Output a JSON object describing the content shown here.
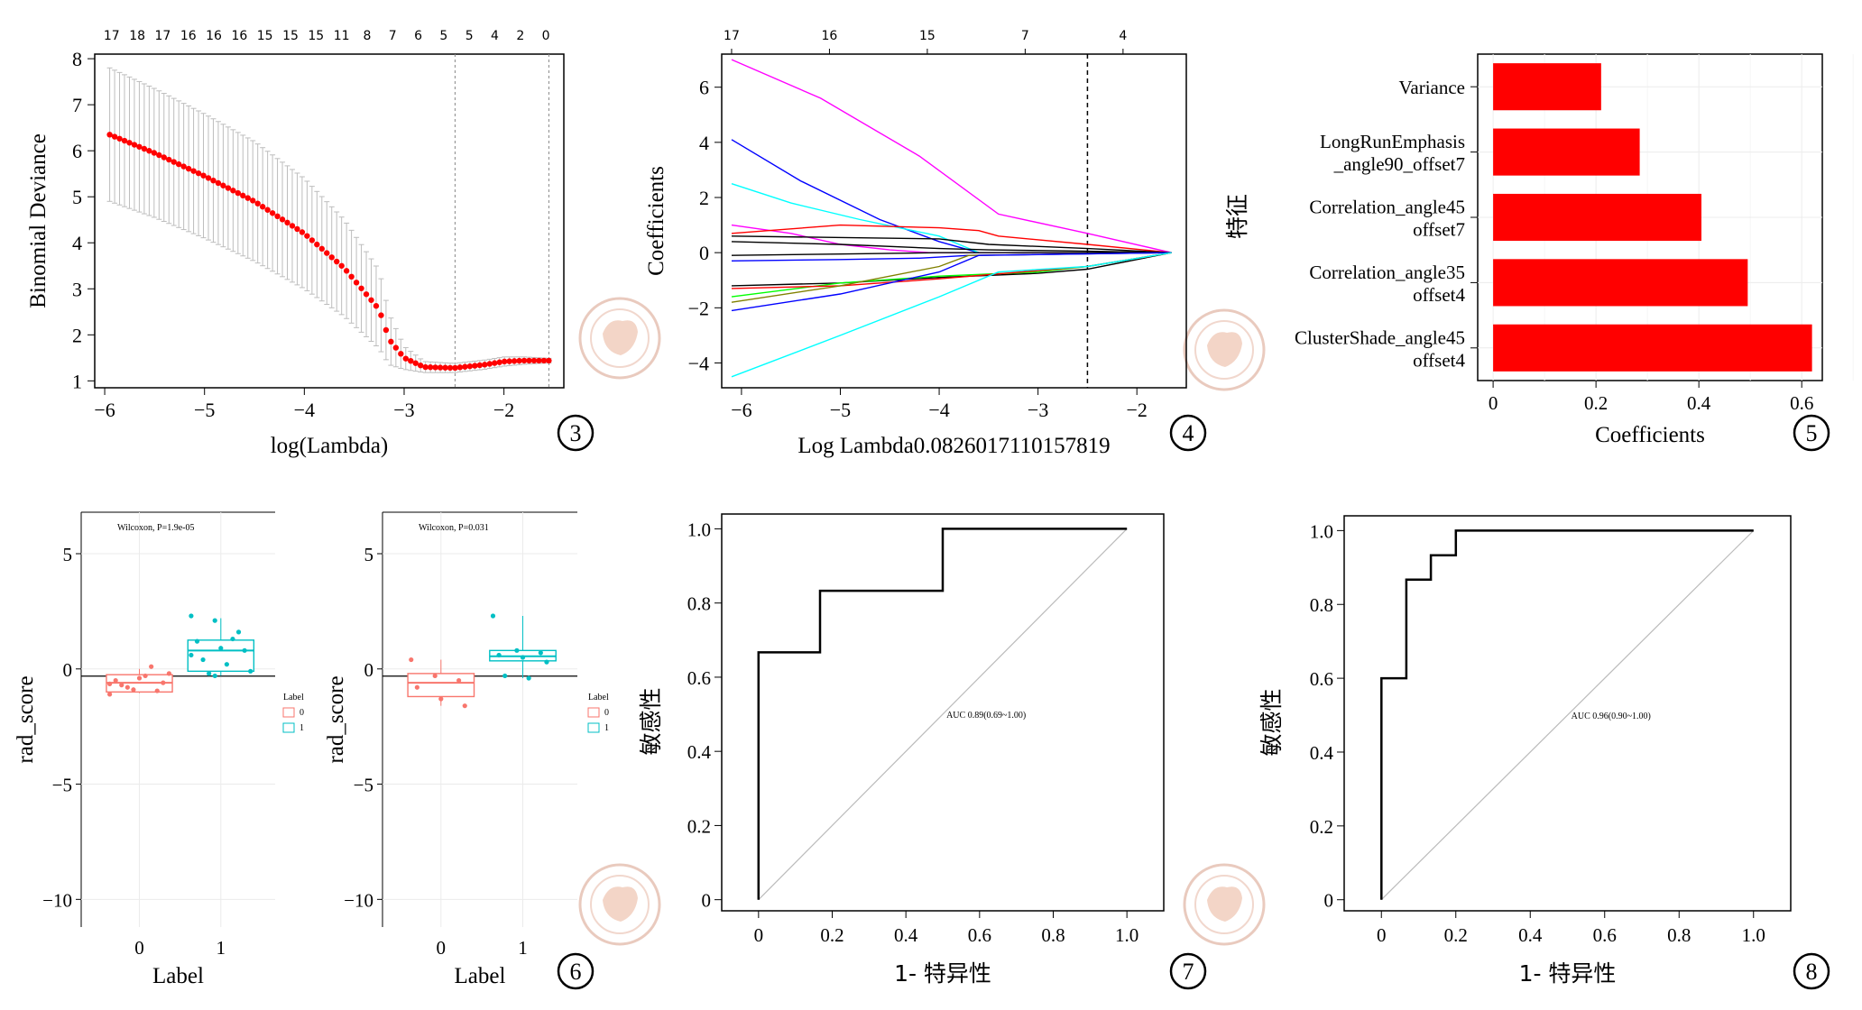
{
  "colors": {
    "red": "#ff0000",
    "black": "#000000",
    "grey": "#bdbdbd",
    "box0": "#f8766d",
    "box1": "#00bfc4",
    "seal": "#e8a080"
  },
  "panel_marks": [
    "3",
    "4",
    "5",
    "6",
    "7",
    "8"
  ],
  "chart_data": [
    {
      "type": "line",
      "id": "cv_deviance",
      "xlabel": "log(Lambda)",
      "ylabel": "Binomial Deviance",
      "xlim": [
        -6.1,
        -1.4
      ],
      "ylim": [
        0.85,
        8.1
      ],
      "xticks": [
        -6,
        -5,
        -4,
        -3,
        -2
      ],
      "yticks": [
        1,
        2,
        3,
        4,
        5,
        6,
        7,
        8
      ],
      "top_axis_labels": [
        "17",
        "18",
        "17",
        "16",
        "16",
        "16",
        "15",
        "15",
        "15",
        "11",
        "8",
        "7",
        "6",
        "5",
        "5",
        "4",
        "2",
        "0"
      ],
      "vlines": [
        -2.49,
        -1.55
      ],
      "series": [
        {
          "x": [
            -5.95,
            -5.5,
            -5.0,
            -4.5,
            -4.0,
            -3.6,
            -3.25,
            -3.15,
            -3.0,
            -2.8,
            -2.5,
            -2.2,
            -2.0,
            -1.8,
            -1.55
          ],
          "y": [
            6.35,
            5.95,
            5.45,
            4.9,
            4.2,
            3.45,
            2.55,
            1.9,
            1.5,
            1.3,
            1.28,
            1.35,
            1.42,
            1.44,
            1.44
          ],
          "err": [
            1.45,
            1.4,
            1.35,
            1.3,
            1.2,
            1.05,
            0.85,
            0.55,
            0.25,
            0.12,
            0.1,
            0.1,
            0.1,
            0.08,
            0.05
          ]
        }
      ]
    },
    {
      "type": "line",
      "id": "coef_path",
      "xlabel": "Log Lambda0.0826017110157819",
      "ylabel": "Coefficients",
      "xlim": [
        -6.2,
        -1.5
      ],
      "ylim": [
        -4.9,
        7.2
      ],
      "xticks": [
        -6,
        -5,
        -4,
        -3,
        -2
      ],
      "yticks": [
        -4,
        -2,
        0,
        2,
        4,
        6
      ],
      "top_axis_labels": [
        {
          "x": -6.2,
          "label": "17"
        },
        {
          "x": -5.2,
          "label": "16"
        },
        {
          "x": -4.2,
          "label": "15"
        },
        {
          "x": -3.2,
          "label": "7"
        },
        {
          "x": -2.2,
          "label": "4"
        }
      ],
      "vlines": [
        -2.5
      ],
      "series": [
        {
          "color": "#ff00ff",
          "x": [
            -6.1,
            -5.2,
            -4.2,
            -3.4,
            -2.5,
            -1.65
          ],
          "y": [
            7.0,
            5.6,
            3.5,
            1.4,
            0.7,
            0.0
          ]
        },
        {
          "color": "#0000ff",
          "x": [
            -6.1,
            -5.4,
            -4.6,
            -4.0,
            -3.6,
            -1.65
          ],
          "y": [
            4.1,
            2.6,
            1.2,
            0.4,
            0.0,
            0.0
          ]
        },
        {
          "color": "#00ffff",
          "x": [
            -6.1,
            -5.5,
            -4.8,
            -4.0,
            -3.6,
            -1.65
          ],
          "y": [
            2.5,
            1.8,
            1.2,
            0.6,
            0.0,
            0.0
          ]
        },
        {
          "color": "#ff00ff",
          "x": [
            -6.1,
            -5.5,
            -5.0,
            -4.5,
            -4.1,
            -1.65
          ],
          "y": [
            1.0,
            0.7,
            0.3,
            0.1,
            0.0,
            0.0
          ]
        },
        {
          "color": "#ff0000",
          "x": [
            -6.1,
            -5.0,
            -4.0,
            -3.6,
            -3.4,
            -2.5,
            -1.65
          ],
          "y": [
            0.7,
            1.0,
            0.9,
            0.8,
            0.6,
            0.3,
            0.0
          ]
        },
        {
          "color": "#000000",
          "x": [
            -6.1,
            -4.0,
            -3.5,
            -2.5,
            -1.65
          ],
          "y": [
            0.6,
            0.5,
            0.3,
            0.15,
            0.0
          ]
        },
        {
          "color": "#000000",
          "x": [
            -6.1,
            -5.0,
            -4.0,
            -3.5,
            -2.5,
            -1.65
          ],
          "y": [
            0.4,
            0.3,
            0.15,
            0.1,
            0.05,
            0.0
          ]
        },
        {
          "color": "#000000",
          "x": [
            -6.1,
            -5.0,
            -4.0,
            -3.0,
            -1.65
          ],
          "y": [
            -0.1,
            -0.05,
            0.0,
            0.0,
            0.0
          ]
        },
        {
          "color": "#0000ff",
          "x": [
            -6.1,
            -5.0,
            -4.2,
            -3.7,
            -1.65
          ],
          "y": [
            -0.3,
            -0.25,
            -0.2,
            -0.1,
            0.0
          ]
        },
        {
          "color": "#000000",
          "x": [
            -6.1,
            -5.0,
            -4.0,
            -3.0,
            -2.5,
            -1.65
          ],
          "y": [
            -1.2,
            -1.1,
            -0.9,
            -0.75,
            -0.6,
            0.0
          ]
        },
        {
          "color": "#00ff00",
          "x": [
            -6.1,
            -5.0,
            -4.0,
            -3.0,
            -2.5,
            -1.65
          ],
          "y": [
            -1.6,
            -1.1,
            -0.85,
            -0.7,
            -0.5,
            0.0
          ]
        },
        {
          "color": "#ff0000",
          "x": [
            -6.1,
            -5.0,
            -4.0,
            -3.5,
            -2.5,
            -1.65
          ],
          "y": [
            -1.3,
            -1.2,
            -0.95,
            -0.8,
            -0.5,
            0.0
          ]
        },
        {
          "color": "#808000",
          "x": [
            -6.1,
            -5.0,
            -4.0,
            -3.7,
            -1.65
          ],
          "y": [
            -1.8,
            -1.2,
            -0.5,
            -0.1,
            0.0
          ]
        },
        {
          "color": "#0000ff",
          "x": [
            -6.1,
            -5.0,
            -4.0,
            -3.6,
            -1.65
          ],
          "y": [
            -2.1,
            -1.5,
            -0.7,
            -0.1,
            0.0
          ]
        },
        {
          "color": "#00ffff",
          "x": [
            -6.1,
            -5.0,
            -4.0,
            -3.4,
            -2.5,
            -1.65
          ],
          "y": [
            -4.5,
            -3.0,
            -1.6,
            -0.7,
            -0.5,
            0.0
          ]
        }
      ]
    },
    {
      "type": "bar",
      "id": "feature_coef",
      "orientation": "horizontal",
      "xlabel": "Coefficients",
      "ylabel": "特征",
      "xlim": [
        -0.03,
        0.64
      ],
      "xticks": [
        0,
        0.2,
        0.4,
        0.6
      ],
      "xtick_labels": [
        "0",
        "0.2",
        "0.4",
        "0.6"
      ],
      "categories": [
        [
          "Variance"
        ],
        [
          "LongRunEmphasis",
          "_angle90_offset7"
        ],
        [
          "Correlation_angle45",
          "offset7"
        ],
        [
          "Correlation_angle35",
          "offset4"
        ],
        [
          "ClusterShade_angle45",
          "offset4"
        ]
      ],
      "values": [
        0.21,
        0.285,
        0.405,
        0.495,
        0.62
      ]
    },
    {
      "type": "box",
      "id": "box_train",
      "annotation": "Wilcoxon, P=1.9e-05",
      "xlabel": "Label",
      "ylabel": "rad_score",
      "ylim": [
        -11.2,
        6.8
      ],
      "yticks": [
        5,
        0,
        -5,
        -10
      ],
      "categories": [
        "0",
        "1"
      ],
      "legend_title": "Label",
      "legend": [
        "0",
        "1"
      ],
      "boxes": [
        {
          "q1": -1.0,
          "median": -0.6,
          "q3": -0.25,
          "lo": -1.05,
          "hi": 0.0,
          "points": [
            -1.1,
            -0.9,
            -0.95,
            -0.5,
            -0.4,
            -0.6,
            -0.7,
            -0.3,
            -0.2,
            -0.8,
            0.1,
            -0.65
          ]
        },
        {
          "q1": -0.1,
          "median": 0.8,
          "q3": 1.25,
          "lo": -0.3,
          "hi": 2.2,
          "points": [
            2.3,
            2.1,
            1.6,
            1.2,
            0.9,
            0.8,
            0.4,
            0.2,
            -0.1,
            -0.2,
            1.3,
            0.6,
            -0.3
          ]
        }
      ]
    },
    {
      "type": "box",
      "id": "box_test",
      "annotation": "Wilcoxon, P=0.031",
      "xlabel": "Label",
      "ylabel": "rad_score",
      "ylim": [
        -11.2,
        6.8
      ],
      "yticks": [
        5,
        0,
        -5,
        -10
      ],
      "categories": [
        "0",
        "1"
      ],
      "legend_title": "Label",
      "legend": [
        "0",
        "1"
      ],
      "boxes": [
        {
          "q1": -1.2,
          "median": -0.6,
          "q3": -0.2,
          "lo": -1.6,
          "hi": 0.4,
          "points": [
            0.4,
            -0.3,
            -0.5,
            -0.8,
            -1.3,
            -1.6
          ]
        },
        {
          "q1": 0.35,
          "median": 0.55,
          "q3": 0.8,
          "lo": -0.4,
          "hi": 2.3,
          "points": [
            2.3,
            0.8,
            0.7,
            0.6,
            0.5,
            0.3,
            -0.3,
            -0.4
          ]
        }
      ]
    },
    {
      "type": "line",
      "id": "roc_train",
      "xlabel": "1- 特异性",
      "ylabel": "敏感性",
      "annotation": "AUC 0.89(0.69~1.00)",
      "xlim": [
        -0.1,
        1.1
      ],
      "ylim": [
        -0.03,
        1.04
      ],
      "ticks": [
        0,
        0.2,
        0.4,
        0.6,
        0.8,
        1.0
      ],
      "xtick_labels": [
        "0",
        "0.2",
        "0.4",
        "0.6",
        "0.8",
        "1.0"
      ],
      "ytick_labels": [
        "0",
        "0.2",
        "0.4",
        "0.6",
        "0.8",
        "1.0"
      ],
      "series": [
        {
          "x": [
            0,
            0,
            0.167,
            0.167,
            0.5,
            0.5,
            1.0
          ],
          "y": [
            0,
            0.667,
            0.667,
            0.833,
            0.833,
            1.0,
            1.0
          ]
        }
      ]
    },
    {
      "type": "line",
      "id": "roc_test",
      "xlabel": "1- 特异性",
      "ylabel": "敏感性",
      "annotation": "AUC 0.96(0.90~1.00)",
      "xlim": [
        -0.1,
        1.1
      ],
      "ylim": [
        -0.03,
        1.04
      ],
      "ticks": [
        0,
        0.2,
        0.4,
        0.6,
        0.8,
        1.0
      ],
      "xtick_labels": [
        "0",
        "0.2",
        "0.4",
        "0.6",
        "0.8",
        "1.0"
      ],
      "ytick_labels": [
        "0",
        "0.2",
        "0.4",
        "0.6",
        "0.8",
        "1.0"
      ],
      "series": [
        {
          "x": [
            0,
            0,
            0.067,
            0.067,
            0.133,
            0.133,
            0.2,
            0.2,
            1.0
          ],
          "y": [
            0,
            0.6,
            0.6,
            0.867,
            0.867,
            0.933,
            0.933,
            1.0,
            1.0
          ]
        }
      ]
    }
  ]
}
